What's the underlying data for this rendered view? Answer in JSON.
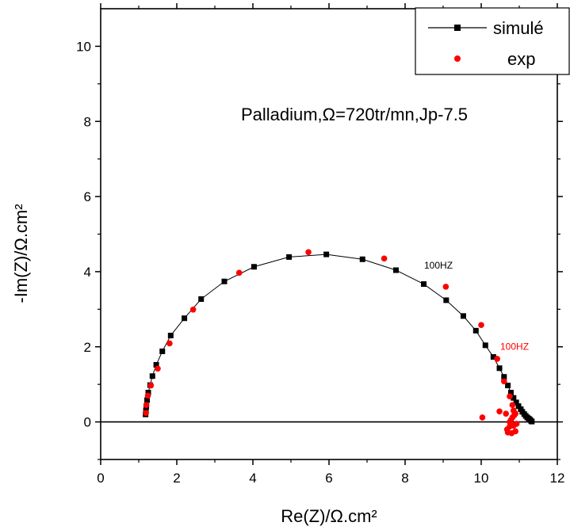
{
  "chart_data": {
    "type": "scatter",
    "title": "",
    "xlabel": "Re(Z)/Ω.cm²",
    "ylabel": "-Im(Z)/Ω.cm²",
    "xlim": [
      0,
      12
    ],
    "ylim": [
      -1,
      11
    ],
    "xticks": [
      0,
      2,
      4,
      6,
      8,
      10,
      12
    ],
    "yticks": [
      0,
      2,
      4,
      6,
      8,
      10
    ],
    "grid": false,
    "legend_position": "top-right",
    "annotation": "Palladium,Ω=720tr/mn,Jp-7.5",
    "reference_line_y": 0,
    "series": [
      {
        "name": "simulé",
        "style": "line-square",
        "color": "#000000",
        "x": [
          1.18,
          1.19,
          1.2,
          1.22,
          1.25,
          1.3,
          1.36,
          1.46,
          1.62,
          1.84,
          2.2,
          2.64,
          3.25,
          4.03,
          4.95,
          5.93,
          6.88,
          7.76,
          8.49,
          9.08,
          9.53,
          9.86,
          10.11,
          10.32,
          10.48,
          10.6,
          10.7,
          10.78,
          10.85,
          10.92,
          10.98,
          11.04,
          11.08,
          11.13,
          11.17,
          11.21,
          11.25,
          11.28,
          11.31,
          11.33
        ],
        "y": [
          0.2,
          0.3,
          0.42,
          0.58,
          0.78,
          0.98,
          1.22,
          1.52,
          1.88,
          2.3,
          2.76,
          3.27,
          3.74,
          4.13,
          4.39,
          4.46,
          4.33,
          4.04,
          3.67,
          3.24,
          2.82,
          2.43,
          2.04,
          1.73,
          1.43,
          1.2,
          0.97,
          0.78,
          0.64,
          0.52,
          0.42,
          0.34,
          0.27,
          0.21,
          0.16,
          0.12,
          0.09,
          0.06,
          0.03,
          0.01
        ]
      },
      {
        "name": "exp",
        "style": "marker-circle",
        "color": "#ff0000",
        "x": [
          1.19,
          1.2,
          1.24,
          1.32,
          1.5,
          1.81,
          2.43,
          3.64,
          5.46,
          7.45,
          9.07,
          10.0,
          10.42,
          10.6,
          10.75,
          10.82,
          10.85,
          10.9,
          10.87,
          10.82,
          10.78,
          10.93,
          10.85,
          10.75,
          10.68,
          10.7,
          10.8,
          10.9,
          10.75,
          10.65,
          10.48,
          10.03
        ],
        "y": [
          0.24,
          0.45,
          0.7,
          0.97,
          1.42,
          2.09,
          2.99,
          3.97,
          4.52,
          4.35,
          3.6,
          2.58,
          1.68,
          1.08,
          0.68,
          0.45,
          0.3,
          0.22,
          0.18,
          0.12,
          0.05,
          -0.05,
          -0.1,
          -0.12,
          -0.2,
          -0.28,
          -0.3,
          -0.25,
          0.0,
          0.22,
          0.28,
          0.12
        ]
      }
    ],
    "point_labels": [
      {
        "text": "100HZ",
        "color": "#000000",
        "x": 8.5,
        "y": 4.08
      },
      {
        "text": "100HZ",
        "color": "#ff0000",
        "x": 10.5,
        "y": 1.92
      }
    ]
  }
}
